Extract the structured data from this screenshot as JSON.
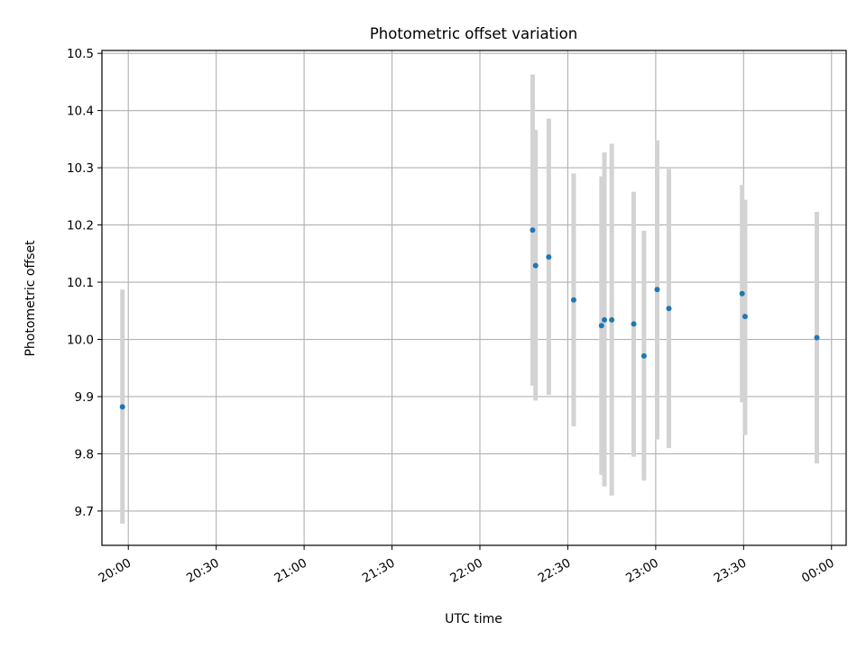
{
  "chart_data": {
    "type": "scatter",
    "title": "Photometric offset variation",
    "xlabel": "UTC time",
    "ylabel": "Photometric offset",
    "xlim": [
      "2023-01-01T19:51:00",
      "2023-01-02T00:05:00"
    ],
    "ylim": [
      9.64,
      10.505
    ],
    "grid": true,
    "colors": {
      "points": "#1f77b4",
      "errorbars": "#d3d3d3",
      "grid": "#b0b0b0"
    },
    "xticks": [
      {
        "t": "2023-01-01T20:00:00",
        "label": "20:00"
      },
      {
        "t": "2023-01-01T20:30:00",
        "label": "20:30"
      },
      {
        "t": "2023-01-01T21:00:00",
        "label": "21:00"
      },
      {
        "t": "2023-01-01T21:30:00",
        "label": "21:30"
      },
      {
        "t": "2023-01-01T22:00:00",
        "label": "22:00"
      },
      {
        "t": "2023-01-01T22:30:00",
        "label": "22:30"
      },
      {
        "t": "2023-01-01T23:00:00",
        "label": "23:00"
      },
      {
        "t": "2023-01-01T23:30:00",
        "label": "23:30"
      },
      {
        "t": "2023-01-02T00:00:00",
        "label": "00:00"
      }
    ],
    "yticks": [
      {
        "v": 9.7,
        "label": "9.7"
      },
      {
        "v": 9.8,
        "label": "9.8"
      },
      {
        "v": 9.9,
        "label": "9.9"
      },
      {
        "v": 10.0,
        "label": "10.0"
      },
      {
        "v": 10.1,
        "label": "10.1"
      },
      {
        "v": 10.2,
        "label": "10.2"
      },
      {
        "v": 10.3,
        "label": "10.3"
      },
      {
        "v": 10.4,
        "label": "10.4"
      },
      {
        "v": 10.5,
        "label": "10.5"
      }
    ],
    "points": [
      {
        "t": "2023-01-01T19:58:00",
        "y": 9.882,
        "low": 9.678,
        "high": 10.087
      },
      {
        "t": "2023-01-01T22:18:00",
        "y": 10.191,
        "low": 9.919,
        "high": 10.463
      },
      {
        "t": "2023-01-01T22:19:00",
        "y": 10.129,
        "low": 9.893,
        "high": 10.366
      },
      {
        "t": "2023-01-01T22:23:30",
        "y": 10.144,
        "low": 9.903,
        "high": 10.386
      },
      {
        "t": "2023-01-01T22:32:00",
        "y": 10.069,
        "low": 9.848,
        "high": 10.29
      },
      {
        "t": "2023-01-01T22:41:30",
        "y": 10.024,
        "low": 9.763,
        "high": 10.285
      },
      {
        "t": "2023-01-01T22:42:30",
        "y": 10.034,
        "low": 9.743,
        "high": 10.327
      },
      {
        "t": "2023-01-01T22:45:00",
        "y": 10.034,
        "low": 9.727,
        "high": 10.342
      },
      {
        "t": "2023-01-01T22:52:30",
        "y": 10.027,
        "low": 9.795,
        "high": 10.258
      },
      {
        "t": "2023-01-01T22:56:00",
        "y": 9.971,
        "low": 9.753,
        "high": 10.19
      },
      {
        "t": "2023-01-01T23:00:30",
        "y": 10.087,
        "low": 9.825,
        "high": 10.348
      },
      {
        "t": "2023-01-01T23:04:30",
        "y": 10.054,
        "low": 9.81,
        "high": 10.298
      },
      {
        "t": "2023-01-01T23:29:30",
        "y": 10.08,
        "low": 9.89,
        "high": 10.27
      },
      {
        "t": "2023-01-01T23:30:30",
        "y": 10.04,
        "low": 9.833,
        "high": 10.244
      },
      {
        "t": "2023-01-01T23:55:00",
        "y": 10.003,
        "low": 9.783,
        "high": 10.223
      }
    ]
  }
}
